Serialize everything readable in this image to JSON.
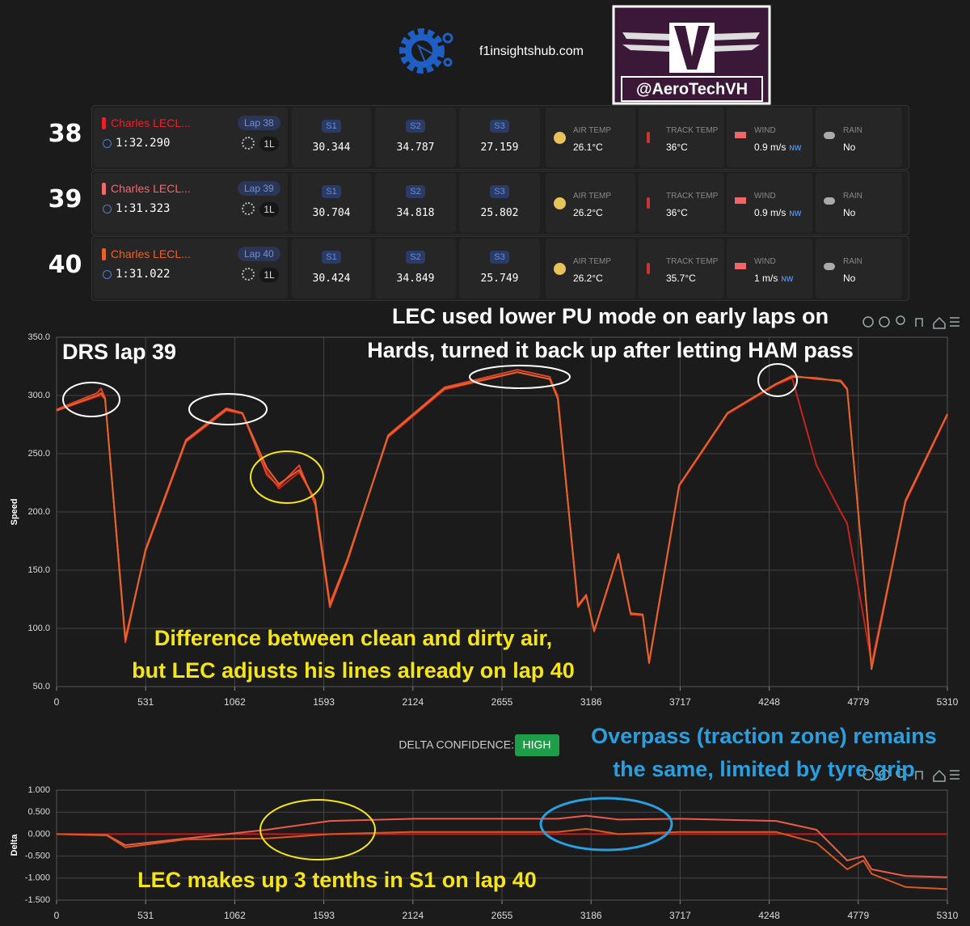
{
  "header": {
    "site": "f1insightshub.com",
    "logo_text": "@AeroTechVH"
  },
  "weather_labels": {
    "air_temp": "AIR TEMP",
    "track_temp": "TRACK TEMP",
    "wind": "WIND",
    "rain": "RAIN"
  },
  "laps": [
    {
      "number": "38",
      "driver": "Charles LECL...",
      "color": "#e8202c",
      "lap": "Lap 38",
      "time": "1:32.290",
      "tyre": "1L",
      "sectors": [
        {
          "label": "S1",
          "time": "30.344"
        },
        {
          "label": "S2",
          "time": "34.787"
        },
        {
          "label": "S3",
          "time": "27.159"
        }
      ],
      "weather": {
        "air_temp": "26.1°C",
        "track_temp": "36°C",
        "wind": "0.9 m/s",
        "wind_dir": "NW",
        "rain": "No"
      }
    },
    {
      "number": "39",
      "driver": "Charles LECL...",
      "color": "#f26a6a",
      "lap": "Lap 39",
      "time": "1:31.323",
      "tyre": "1L",
      "sectors": [
        {
          "label": "S1",
          "time": "30.704"
        },
        {
          "label": "S2",
          "time": "34.818"
        },
        {
          "label": "S3",
          "time": "25.802"
        }
      ],
      "weather": {
        "air_temp": "26.2°C",
        "track_temp": "36°C",
        "wind": "0.9 m/s",
        "wind_dir": "NW",
        "rain": "No"
      }
    },
    {
      "number": "40",
      "driver": "Charles LECL...",
      "color": "#e8622a",
      "lap": "Lap 40",
      "time": "1:31.022",
      "tyre": "1L",
      "sectors": [
        {
          "label": "S1",
          "time": "30.424"
        },
        {
          "label": "S2",
          "time": "34.849"
        },
        {
          "label": "S3",
          "time": "25.749"
        }
      ],
      "weather": {
        "air_temp": "26.2°C",
        "track_temp": "35.7°C",
        "wind": "1 m/s",
        "wind_dir": "NW",
        "rain": "No"
      }
    }
  ],
  "delta_confidence": {
    "label": "DELTA CONFIDENCE:",
    "value": "HIGH"
  },
  "chart_data": [
    {
      "type": "line",
      "ylabel": "Speed",
      "grid": true,
      "x": [
        0,
        241,
        265,
        289,
        410,
        530,
        771,
        1012,
        1108,
        1253,
        1325,
        1446,
        1542,
        1629,
        1735,
        1976,
        2313,
        2747,
        2940,
        2988,
        3108,
        3157,
        3205,
        3349,
        3422,
        3494,
        3532,
        3711,
        4000,
        4289,
        4385,
        4530,
        4674,
        4713,
        4810,
        4858,
        5060,
        5310
      ],
      "series": [
        {
          "color": "#c8231c",
          "values": [
            287,
            299,
            300,
            297,
            92,
            166,
            260,
            287,
            284,
            235,
            220,
            234,
            210,
            122,
            160,
            264,
            305,
            320,
            314,
            300,
            118,
            128,
            97,
            163,
            112,
            111,
            71,
            222,
            284,
            309,
            315,
            240,
            200,
            190,
            110,
            70,
            208,
            283
          ]
        },
        {
          "color": "#e8412c",
          "values": [
            288,
            302,
            306,
            298,
            88,
            168,
            262,
            289,
            285,
            232,
            222,
            240,
            206,
            118,
            158,
            266,
            307,
            322,
            316,
            298,
            120,
            129,
            98,
            164,
            112,
            112,
            70,
            223,
            285,
            310,
            317,
            314,
            313,
            306,
            150,
            66,
            210,
            284
          ]
        },
        {
          "color": "#e2652c",
          "values": [
            287,
            300,
            302,
            297,
            90,
            167,
            261,
            288,
            285,
            238,
            224,
            236,
            210,
            120,
            160,
            265,
            306,
            320,
            314,
            297,
            119,
            128,
            98,
            164,
            113,
            112,
            71,
            223,
            285,
            310,
            316,
            315,
            312,
            305,
            150,
            65,
            209,
            284
          ]
        }
      ],
      "xlim": [
        0,
        5310
      ],
      "xticks": [
        0,
        531,
        1062,
        1593,
        2124,
        2655,
        3186,
        3717,
        4248,
        4779,
        5310
      ],
      "ylim": [
        50,
        350
      ],
      "yticks": [
        {
          "value": 50,
          "label": "50.0"
        },
        {
          "value": 100,
          "label": "100.0"
        },
        {
          "value": 150,
          "label": "150.0"
        },
        {
          "value": 200,
          "label": "200.0"
        },
        {
          "value": 250,
          "label": "250.0"
        },
        {
          "value": 300,
          "label": "300.0"
        },
        {
          "value": 350,
          "label": "350.0"
        }
      ],
      "annotations": [
        "DRS lap 39",
        "LEC used lower PU mode on early laps on",
        "Hards, turned it back up after letting HAM pass",
        "Difference between clean and dirty air,",
        "but LEC adjusts his lines already on lap 40"
      ]
    },
    {
      "type": "line",
      "ylabel": "Delta",
      "grid": true,
      "x": [
        0,
        300,
        410,
        771,
        1253,
        1629,
        2124,
        2988,
        3157,
        3349,
        3711,
        4289,
        4530,
        4713,
        4810,
        4858,
        5060,
        5310
      ],
      "series": [
        {
          "color": "#ec5a4a",
          "values": [
            0,
            -0.02,
            -0.25,
            -0.1,
            0.1,
            0.3,
            0.35,
            0.35,
            0.42,
            0.33,
            0.35,
            0.3,
            0.1,
            -0.6,
            -0.5,
            -0.8,
            -0.95,
            -0.98
          ]
        },
        {
          "color": "#d9581f",
          "values": [
            0,
            -0.03,
            -0.3,
            -0.12,
            -0.1,
            0,
            0.05,
            0.05,
            0.12,
            0,
            0.05,
            0.05,
            -0.2,
            -0.8,
            -0.6,
            -0.9,
            -1.2,
            -1.25
          ]
        }
      ],
      "xlim": [
        0,
        5310
      ],
      "xticks": [
        0,
        531,
        1062,
        1593,
        2124,
        2655,
        3186,
        3717,
        4248,
        4779,
        5310
      ],
      "ylim": [
        -1.5,
        1
      ],
      "yticks": [
        {
          "value": -1.5,
          "label": "-1.500"
        },
        {
          "value": -1,
          "label": "-1.000"
        },
        {
          "value": -0.5,
          "label": "-0.500"
        },
        {
          "value": 0,
          "label": "0.000"
        },
        {
          "value": 0.5,
          "label": "0.500"
        },
        {
          "value": 1,
          "label": "1.000"
        }
      ],
      "annotations": [
        "Overpass (traction zone) remains",
        "the same, limited by tyre grip",
        "LEC makes up 3 tenths in S1 on lap 40"
      ]
    }
  ]
}
